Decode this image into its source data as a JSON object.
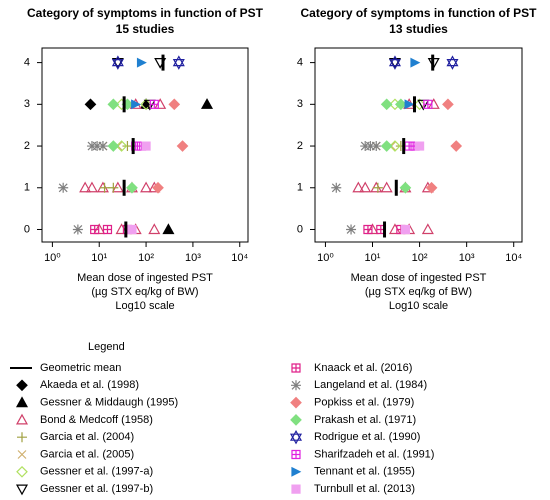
{
  "chart_data": [
    {
      "type": "scatter",
      "title": "Category of symptoms in function of PST",
      "subtitle": "15 studies",
      "xlabel": [
        "Mean dose of ingested PST",
        "(µg STX eq/kg of BW)",
        "Log10 scale"
      ],
      "xscale": "log",
      "xlim": [
        0.6,
        15000
      ],
      "xticks": [
        {
          "value": 1,
          "label": "10⁰"
        },
        {
          "value": 10,
          "label": "10¹"
        },
        {
          "value": 100,
          "label": "10²"
        },
        {
          "value": 1000,
          "label": "10³"
        },
        {
          "value": 10000,
          "label": "10⁴"
        }
      ],
      "ylim": [
        -0.3,
        4.35
      ],
      "yticks": [
        0,
        1,
        2,
        3,
        4
      ],
      "legend_title": "Legend",
      "series": [
        {
          "name": "Geometric mean",
          "color": "#000000",
          "marker": "bar",
          "x": [
            37,
            34,
            53,
            34,
            230
          ],
          "values": [
            0,
            1,
            2,
            3,
            4
          ]
        },
        {
          "name": "Akaeda et al. (1998)",
          "color": "#000000",
          "marker": "diamond",
          "x": [
            6.5
          ],
          "values": [
            3
          ]
        },
        {
          "name": "Gessner & Middaugh (1995)",
          "color": "#000000",
          "marker": "triangle",
          "x": [
            2000,
            100,
            300
          ],
          "values": [
            3,
            3,
            0
          ]
        },
        {
          "name": "Bond & Medcoff (1958)",
          "color": "#d0406a",
          "marker": "triangle-open",
          "x": [
            5,
            7,
            12,
            25,
            50,
            100,
            150,
            10,
            30,
            60,
            150,
            60,
            200
          ],
          "values": [
            1,
            1,
            1,
            1,
            1,
            1,
            1,
            0,
            0,
            0,
            0,
            3,
            3
          ]
        },
        {
          "name": "Garcia et al. (2004)",
          "color": "#a0a040",
          "marker": "plus",
          "x": [
            13,
            20,
            40
          ],
          "values": [
            1,
            1,
            2
          ]
        },
        {
          "name": "Garcia et al. (2005)",
          "color": "#d0b070",
          "marker": "cross",
          "x": [
            12,
            25
          ],
          "values": [
            2,
            2
          ]
        },
        {
          "name": "Gessner et al. (1997-a)",
          "color": "#b0e060",
          "marker": "diamond-open",
          "x": [
            30,
            100,
            30
          ],
          "values": [
            3,
            3,
            2
          ]
        },
        {
          "name": "Gessner et al. (1997-b)",
          "color": "#000000",
          "marker": "tri-down-open",
          "x": [
            25,
            200,
            120
          ],
          "values": [
            4,
            4,
            3
          ]
        },
        {
          "name": "Knaack et al. (2016)",
          "color": "#e0208a",
          "marker": "square-plus",
          "x": [
            8,
            15,
            40
          ],
          "values": [
            0,
            0,
            0
          ]
        },
        {
          "name": "Langeland et al. (1984)",
          "color": "#808080",
          "marker": "asterisk",
          "x": [
            1.7,
            7,
            9,
            12,
            3.5
          ],
          "values": [
            1,
            2,
            2,
            2,
            0
          ]
        },
        {
          "name": "Popkiss et al. (1979)",
          "color": "#f08080",
          "marker": "diamond",
          "x": [
            600,
            400,
            180
          ],
          "values": [
            2,
            3,
            1
          ]
        },
        {
          "name": "Prakash et al. (1971)",
          "color": "#80e080",
          "marker": "diamond",
          "x": [
            20,
            40,
            20,
            50
          ],
          "values": [
            3,
            3,
            2,
            1
          ]
        },
        {
          "name": "Rodrigue et al. (1990)",
          "color": "#2020a0",
          "marker": "star6",
          "x": [
            25,
            500
          ],
          "values": [
            4,
            4
          ]
        },
        {
          "name": "Sharifzadeh et al. (1991)",
          "color": "#e020e0",
          "marker": "square-plus",
          "x": [
            60,
            80,
            150
          ],
          "values": [
            2,
            2,
            3
          ]
        },
        {
          "name": "Tennant et al. (1955)",
          "color": "#2080d0",
          "marker": "flag",
          "x": [
            80,
            60
          ],
          "values": [
            4,
            3
          ]
        },
        {
          "name": "Turnbull et al. (2013)",
          "color": "#f0a0f0",
          "marker": "square",
          "x": [
            100,
            50
          ],
          "values": [
            2,
            0
          ]
        }
      ]
    },
    {
      "type": "scatter",
      "title": "Category of symptoms in function of PST",
      "subtitle": "13 studies",
      "xlabel": [
        "Mean dose of ingested PST",
        "(µg STX eq/kg of BW)",
        "Log10 scale"
      ],
      "xscale": "log",
      "xlim": [
        0.6,
        15000
      ],
      "xticks": [
        {
          "value": 1,
          "label": "10⁰"
        },
        {
          "value": 10,
          "label": "10¹"
        },
        {
          "value": 100,
          "label": "10²"
        },
        {
          "value": 1000,
          "label": "10³"
        },
        {
          "value": 10000,
          "label": "10⁴"
        }
      ],
      "ylim": [
        -0.3,
        4.35
      ],
      "yticks": [
        0,
        1,
        2,
        3,
        4
      ],
      "series": [
        {
          "color": "#000000",
          "marker": "bar",
          "x": [
            18,
            32,
            46,
            78,
            190
          ],
          "values": [
            0,
            1,
            2,
            3,
            4
          ]
        },
        {
          "color": "#d0406a",
          "marker": "triangle-open",
          "x": [
            5,
            7,
            12,
            20,
            50,
            150,
            10,
            30,
            60,
            150,
            60,
            200
          ],
          "values": [
            1,
            1,
            1,
            1,
            1,
            1,
            0,
            0,
            0,
            0,
            3,
            3
          ]
        },
        {
          "color": "#a0a040",
          "marker": "plus",
          "x": [
            13,
            40
          ],
          "values": [
            1,
            2
          ]
        },
        {
          "color": "#d0b070",
          "marker": "cross",
          "x": [
            12,
            25
          ],
          "values": [
            2,
            2
          ]
        },
        {
          "color": "#b0e060",
          "marker": "diamond-open",
          "x": [
            30,
            100,
            30
          ],
          "values": [
            3,
            3,
            2
          ]
        },
        {
          "color": "#000000",
          "marker": "tri-down-open",
          "x": [
            30,
            200,
            120
          ],
          "values": [
            4,
            4,
            3
          ]
        },
        {
          "color": "#e0208a",
          "marker": "square-plus",
          "x": [
            8,
            15,
            40
          ],
          "values": [
            0,
            0,
            0
          ]
        },
        {
          "color": "#808080",
          "marker": "asterisk",
          "x": [
            1.7,
            7,
            9,
            12,
            3.5
          ],
          "values": [
            1,
            2,
            2,
            2,
            0
          ]
        },
        {
          "color": "#f08080",
          "marker": "diamond",
          "x": [
            600,
            400,
            180
          ],
          "values": [
            2,
            3,
            1
          ]
        },
        {
          "color": "#80e080",
          "marker": "diamond",
          "x": [
            20,
            40,
            20,
            50
          ],
          "values": [
            3,
            3,
            2,
            1
          ]
        },
        {
          "color": "#2020a0",
          "marker": "star6",
          "x": [
            30,
            500
          ],
          "values": [
            4,
            4
          ]
        },
        {
          "color": "#e020e0",
          "marker": "square-plus",
          "x": [
            60,
            80,
            150
          ],
          "values": [
            2,
            2,
            3
          ]
        },
        {
          "color": "#2080d0",
          "marker": "flag",
          "x": [
            80,
            60
          ],
          "values": [
            4,
            3
          ]
        },
        {
          "color": "#f0a0f0",
          "marker": "square",
          "x": [
            100,
            50
          ],
          "values": [
            2,
            0
          ]
        }
      ]
    }
  ]
}
